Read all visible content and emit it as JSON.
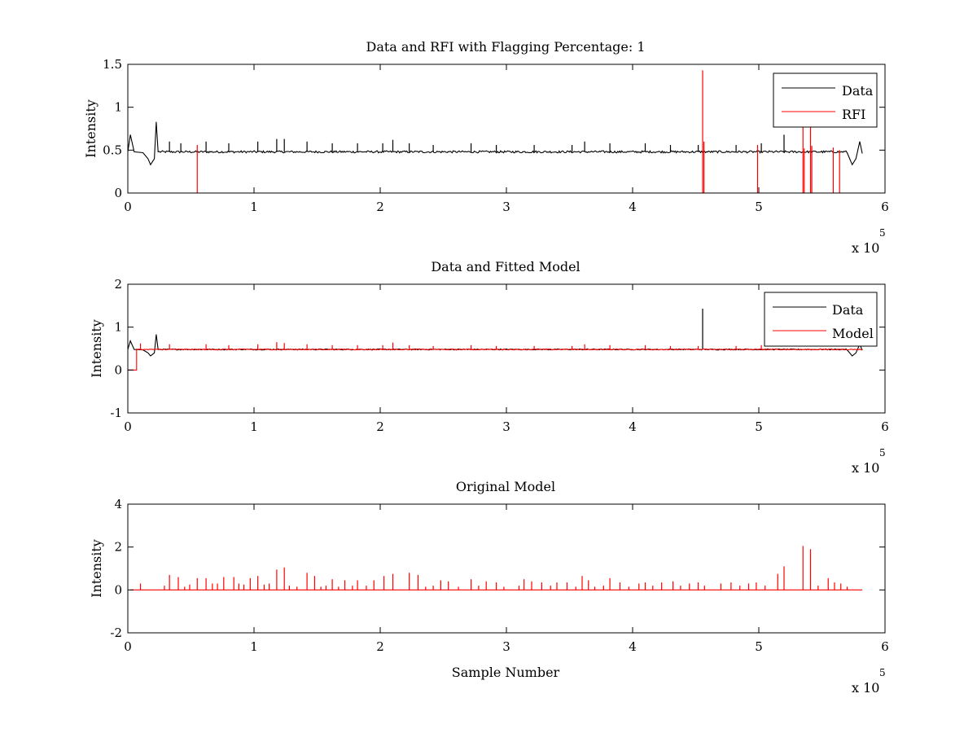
{
  "colors": {
    "data": "#000000",
    "rfi": "#ff0000",
    "model": "#ff0000"
  },
  "chart_data": [
    {
      "type": "line",
      "title": "Data and RFI with Flagging Percentage: 1",
      "xlabel": "",
      "ylabel": "Intensity",
      "xlim": [
        0,
        6
      ],
      "ylim": [
        0,
        1.5
      ],
      "x_exponent_label": "x 10",
      "x_exponent_power": "5",
      "xticks": [
        "0",
        "1",
        "2",
        "3",
        "4",
        "5",
        "6"
      ],
      "yticks": [
        "0",
        "0.5",
        "1",
        "1.5"
      ],
      "legend_position": "top-right",
      "legend": [
        "Data",
        "RFI"
      ],
      "series": [
        {
          "name": "Data",
          "color": "#000000",
          "baseline": 0.48,
          "dips": [
            {
              "x": 0.0,
              "y": 0.48
            },
            {
              "x": 0.02,
              "y": 0.68
            },
            {
              "x": 0.05,
              "y": 0.48
            },
            {
              "x": 0.12,
              "y": 0.47
            },
            {
              "x": 0.16,
              "y": 0.4
            },
            {
              "x": 0.18,
              "y": 0.33
            },
            {
              "x": 0.21,
              "y": 0.4
            },
            {
              "x": 0.225,
              "y": 0.83
            },
            {
              "x": 0.24,
              "y": 0.48
            },
            {
              "x": 5.7,
              "y": 0.47
            },
            {
              "x": 5.74,
              "y": 0.33
            },
            {
              "x": 5.77,
              "y": 0.4
            },
            {
              "x": 5.8,
              "y": 0.6
            },
            {
              "x": 5.82,
              "y": 0.46
            }
          ],
          "spikes": [
            {
              "x": 0.33,
              "y": 0.6
            },
            {
              "x": 0.42,
              "y": 0.58
            },
            {
              "x": 0.62,
              "y": 0.6
            },
            {
              "x": 0.8,
              "y": 0.58
            },
            {
              "x": 1.03,
              "y": 0.6
            },
            {
              "x": 1.18,
              "y": 0.63
            },
            {
              "x": 1.24,
              "y": 0.63
            },
            {
              "x": 1.42,
              "y": 0.6
            },
            {
              "x": 1.62,
              "y": 0.58
            },
            {
              "x": 1.82,
              "y": 0.58
            },
            {
              "x": 2.02,
              "y": 0.58
            },
            {
              "x": 2.1,
              "y": 0.62
            },
            {
              "x": 2.23,
              "y": 0.58
            },
            {
              "x": 2.42,
              "y": 0.56
            },
            {
              "x": 2.72,
              "y": 0.58
            },
            {
              "x": 2.92,
              "y": 0.56
            },
            {
              "x": 3.22,
              "y": 0.56
            },
            {
              "x": 3.52,
              "y": 0.56
            },
            {
              "x": 3.62,
              "y": 0.6
            },
            {
              "x": 3.82,
              "y": 0.58
            },
            {
              "x": 4.1,
              "y": 0.58
            },
            {
              "x": 4.3,
              "y": 0.56
            },
            {
              "x": 4.52,
              "y": 0.56
            },
            {
              "x": 4.82,
              "y": 0.56
            },
            {
              "x": 5.02,
              "y": 0.58
            },
            {
              "x": 5.2,
              "y": 0.68
            }
          ]
        },
        {
          "name": "RFI",
          "color": "#ff0000",
          "spikes": [
            {
              "x": 0.55,
              "y": 0.56
            },
            {
              "x": 4.555,
              "y": 1.43
            },
            {
              "x": 4.565,
              "y": 0.6
            },
            {
              "x": 4.99,
              "y": 0.56
            },
            {
              "x": 5.35,
              "y": 0.8
            },
            {
              "x": 5.36,
              "y": 0.52
            },
            {
              "x": 5.41,
              "y": 0.8
            },
            {
              "x": 5.42,
              "y": 0.55
            },
            {
              "x": 5.59,
              "y": 0.53
            },
            {
              "x": 5.64,
              "y": 0.5
            }
          ]
        }
      ]
    },
    {
      "type": "line",
      "title": "Data and Fitted Model",
      "xlabel": "",
      "ylabel": "Intensity",
      "xlim": [
        0,
        6
      ],
      "ylim": [
        -1,
        2
      ],
      "x_exponent_label": "x 10",
      "x_exponent_power": "5",
      "xticks": [
        "0",
        "1",
        "2",
        "3",
        "4",
        "5",
        "6"
      ],
      "yticks": [
        "-1",
        "0",
        "1",
        "2"
      ],
      "legend_position": "top-right",
      "legend": [
        "Data",
        "Model"
      ],
      "series": [
        {
          "name": "Data",
          "color": "#000000",
          "baseline": 0.48,
          "dips": [
            {
              "x": 0.0,
              "y": 0.48
            },
            {
              "x": 0.02,
              "y": 0.68
            },
            {
              "x": 0.05,
              "y": 0.48
            },
            {
              "x": 0.12,
              "y": 0.47
            },
            {
              "x": 0.16,
              "y": 0.4
            },
            {
              "x": 0.18,
              "y": 0.33
            },
            {
              "x": 0.21,
              "y": 0.4
            },
            {
              "x": 0.225,
              "y": 0.83
            },
            {
              "x": 0.24,
              "y": 0.48
            },
            {
              "x": 5.7,
              "y": 0.47
            },
            {
              "x": 5.74,
              "y": 0.33
            },
            {
              "x": 5.77,
              "y": 0.4
            },
            {
              "x": 5.8,
              "y": 0.6
            },
            {
              "x": 5.82,
              "y": 0.46
            }
          ],
          "spikes": [
            {
              "x": 4.555,
              "y": 1.43
            }
          ]
        },
        {
          "name": "Model",
          "color": "#ff0000",
          "baseline": 0.48,
          "step": [
            {
              "x": 0.0,
              "y": 0.0
            },
            {
              "x": 0.07,
              "y": 0.0
            },
            {
              "x": 0.07,
              "y": 0.48
            }
          ],
          "spikes": [
            {
              "x": 0.1,
              "y": 0.62
            },
            {
              "x": 0.33,
              "y": 0.6
            },
            {
              "x": 0.62,
              "y": 0.6
            },
            {
              "x": 0.8,
              "y": 0.58
            },
            {
              "x": 1.03,
              "y": 0.6
            },
            {
              "x": 1.18,
              "y": 0.65
            },
            {
              "x": 1.24,
              "y": 0.63
            },
            {
              "x": 1.42,
              "y": 0.6
            },
            {
              "x": 1.62,
              "y": 0.58
            },
            {
              "x": 1.82,
              "y": 0.58
            },
            {
              "x": 2.02,
              "y": 0.58
            },
            {
              "x": 2.1,
              "y": 0.64
            },
            {
              "x": 2.23,
              "y": 0.58
            },
            {
              "x": 2.42,
              "y": 0.56
            },
            {
              "x": 2.72,
              "y": 0.58
            },
            {
              "x": 2.92,
              "y": 0.56
            },
            {
              "x": 3.22,
              "y": 0.56
            },
            {
              "x": 3.52,
              "y": 0.56
            },
            {
              "x": 3.62,
              "y": 0.6
            },
            {
              "x": 3.82,
              "y": 0.58
            },
            {
              "x": 4.1,
              "y": 0.58
            },
            {
              "x": 4.3,
              "y": 0.56
            },
            {
              "x": 4.52,
              "y": 0.56
            },
            {
              "x": 4.82,
              "y": 0.56
            },
            {
              "x": 5.02,
              "y": 0.58
            }
          ]
        }
      ]
    },
    {
      "type": "line",
      "title": "Original Model",
      "xlabel": "Sample Number",
      "ylabel": "Intensity",
      "xlim": [
        0,
        6
      ],
      "ylim": [
        -2,
        4
      ],
      "x_exponent_label": "x 10",
      "x_exponent_power": "5",
      "xticks": [
        "0",
        "1",
        "2",
        "3",
        "4",
        "5",
        "6"
      ],
      "yticks": [
        "-2",
        "0",
        "2",
        "4"
      ],
      "legend_position": "none",
      "legend": [],
      "series": [
        {
          "name": "",
          "color": "#ff0000",
          "baseline": 0.0,
          "spikes": [
            {
              "x": 0.1,
              "y": 0.3
            },
            {
              "x": 0.29,
              "y": 0.2
            },
            {
              "x": 0.33,
              "y": 0.7
            },
            {
              "x": 0.4,
              "y": 0.6
            },
            {
              "x": 0.45,
              "y": 0.15
            },
            {
              "x": 0.49,
              "y": 0.25
            },
            {
              "x": 0.55,
              "y": 0.55
            },
            {
              "x": 0.62,
              "y": 0.55
            },
            {
              "x": 0.67,
              "y": 0.3
            },
            {
              "x": 0.71,
              "y": 0.3
            },
            {
              "x": 0.76,
              "y": 0.6
            },
            {
              "x": 0.84,
              "y": 0.6
            },
            {
              "x": 0.88,
              "y": 0.3
            },
            {
              "x": 0.92,
              "y": 0.25
            },
            {
              "x": 0.97,
              "y": 0.55
            },
            {
              "x": 1.03,
              "y": 0.65
            },
            {
              "x": 1.08,
              "y": 0.25
            },
            {
              "x": 1.12,
              "y": 0.3
            },
            {
              "x": 1.18,
              "y": 0.95
            },
            {
              "x": 1.24,
              "y": 1.05
            },
            {
              "x": 1.28,
              "y": 0.2
            },
            {
              "x": 1.34,
              "y": 0.15
            },
            {
              "x": 1.42,
              "y": 0.8
            },
            {
              "x": 1.48,
              "y": 0.65
            },
            {
              "x": 1.53,
              "y": 0.15
            },
            {
              "x": 1.57,
              "y": 0.2
            },
            {
              "x": 1.62,
              "y": 0.5
            },
            {
              "x": 1.67,
              "y": 0.15
            },
            {
              "x": 1.72,
              "y": 0.45
            },
            {
              "x": 1.78,
              "y": 0.2
            },
            {
              "x": 1.82,
              "y": 0.45
            },
            {
              "x": 1.89,
              "y": 0.2
            },
            {
              "x": 1.95,
              "y": 0.45
            },
            {
              "x": 2.03,
              "y": 0.65
            },
            {
              "x": 2.1,
              "y": 0.75
            },
            {
              "x": 2.23,
              "y": 0.8
            },
            {
              "x": 2.3,
              "y": 0.7
            },
            {
              "x": 2.36,
              "y": 0.15
            },
            {
              "x": 2.42,
              "y": 0.2
            },
            {
              "x": 2.48,
              "y": 0.45
            },
            {
              "x": 2.54,
              "y": 0.4
            },
            {
              "x": 2.62,
              "y": 0.15
            },
            {
              "x": 2.72,
              "y": 0.5
            },
            {
              "x": 2.78,
              "y": 0.2
            },
            {
              "x": 2.84,
              "y": 0.4
            },
            {
              "x": 2.92,
              "y": 0.35
            },
            {
              "x": 2.98,
              "y": 0.15
            },
            {
              "x": 3.1,
              "y": 0.2
            },
            {
              "x": 3.14,
              "y": 0.5
            },
            {
              "x": 3.2,
              "y": 0.4
            },
            {
              "x": 3.28,
              "y": 0.35
            },
            {
              "x": 3.35,
              "y": 0.2
            },
            {
              "x": 3.4,
              "y": 0.35
            },
            {
              "x": 3.48,
              "y": 0.35
            },
            {
              "x": 3.55,
              "y": 0.15
            },
            {
              "x": 3.6,
              "y": 0.65
            },
            {
              "x": 3.65,
              "y": 0.45
            },
            {
              "x": 3.7,
              "y": 0.15
            },
            {
              "x": 3.77,
              "y": 0.2
            },
            {
              "x": 3.82,
              "y": 0.55
            },
            {
              "x": 3.9,
              "y": 0.35
            },
            {
              "x": 3.97,
              "y": 0.15
            },
            {
              "x": 4.05,
              "y": 0.3
            },
            {
              "x": 4.1,
              "y": 0.35
            },
            {
              "x": 4.16,
              "y": 0.2
            },
            {
              "x": 4.23,
              "y": 0.35
            },
            {
              "x": 4.32,
              "y": 0.4
            },
            {
              "x": 4.38,
              "y": 0.2
            },
            {
              "x": 4.45,
              "y": 0.3
            },
            {
              "x": 4.52,
              "y": 0.35
            },
            {
              "x": 4.57,
              "y": 0.2
            },
            {
              "x": 4.7,
              "y": 0.3
            },
            {
              "x": 4.78,
              "y": 0.35
            },
            {
              "x": 4.85,
              "y": 0.2
            },
            {
              "x": 4.92,
              "y": 0.3
            },
            {
              "x": 4.98,
              "y": 0.35
            },
            {
              "x": 5.05,
              "y": 0.2
            },
            {
              "x": 5.15,
              "y": 0.75
            },
            {
              "x": 5.2,
              "y": 1.1
            },
            {
              "x": 5.35,
              "y": 2.05
            },
            {
              "x": 5.41,
              "y": 1.9
            },
            {
              "x": 5.47,
              "y": 0.2
            },
            {
              "x": 5.55,
              "y": 0.55
            },
            {
              "x": 5.6,
              "y": 0.35
            },
            {
              "x": 5.65,
              "y": 0.3
            },
            {
              "x": 5.7,
              "y": 0.15
            }
          ],
          "end_x": 5.82
        }
      ]
    }
  ]
}
